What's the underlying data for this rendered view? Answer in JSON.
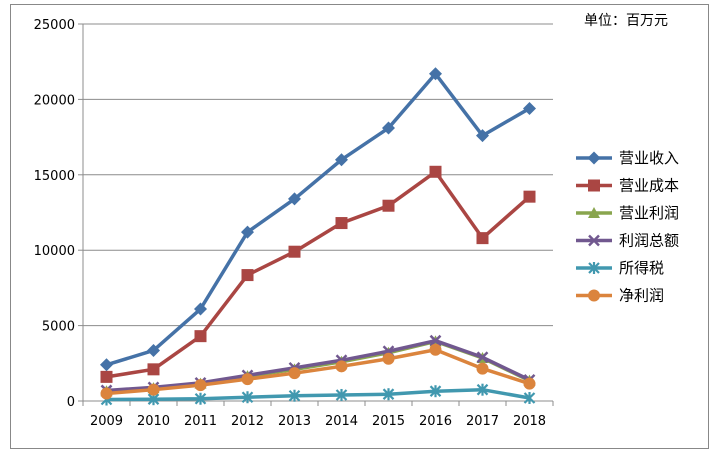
{
  "chart_data": {
    "type": "line",
    "unit_label": "单位：百万元",
    "categories": [
      "2009",
      "2010",
      "2011",
      "2012",
      "2013",
      "2014",
      "2015",
      "2016",
      "2017",
      "2018"
    ],
    "ylim": [
      0,
      25000
    ],
    "yticks": [
      0,
      5000,
      10000,
      15000,
      20000,
      25000
    ],
    "grid": true,
    "legend_position": "right",
    "series": [
      {
        "name": "营业收入",
        "color": "#4572A7",
        "marker": "diamond",
        "values": [
          2400,
          3350,
          6100,
          11200,
          13400,
          16000,
          18100,
          21700,
          17600,
          19400
        ]
      },
      {
        "name": "营业成本",
        "color": "#AA4643",
        "marker": "square",
        "values": [
          1600,
          2100,
          4300,
          8350,
          9900,
          11800,
          12950,
          15200,
          10800,
          13550
        ]
      },
      {
        "name": "营业利润",
        "color": "#89A54E",
        "marker": "triangle",
        "values": [
          650,
          850,
          1150,
          1650,
          2100,
          2600,
          3200,
          3950,
          2850,
          1350
        ]
      },
      {
        "name": "利润总额",
        "color": "#71588F",
        "marker": "x",
        "values": [
          700,
          900,
          1200,
          1700,
          2200,
          2700,
          3300,
          4000,
          2900,
          1400
        ]
      },
      {
        "name": "所得税",
        "color": "#4198AF",
        "marker": "star",
        "values": [
          100,
          120,
          150,
          250,
          350,
          400,
          450,
          650,
          750,
          200
        ]
      },
      {
        "name": "净利润",
        "color": "#DB843D",
        "marker": "circle",
        "values": [
          500,
          750,
          1050,
          1450,
          1850,
          2300,
          2800,
          3400,
          2150,
          1150
        ]
      }
    ]
  }
}
